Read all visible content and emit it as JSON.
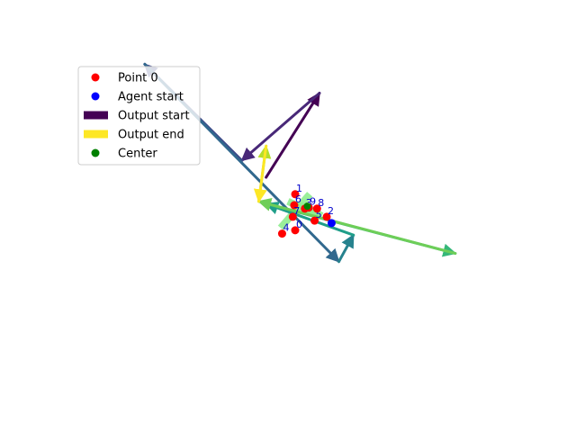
{
  "chart_data": {
    "type": "scatter",
    "title": "",
    "xlabel": "",
    "ylabel": "",
    "axes_visible": false,
    "grid": false,
    "xlim": [
      -4.6,
      4.6
    ],
    "ylim": [
      -3.6,
      3.3
    ],
    "legend": {
      "placement": "upper-left",
      "entries": [
        {
          "label": "Point 0",
          "marker": "dot",
          "color": "#ff0000"
        },
        {
          "label": "Agent start",
          "marker": "dot",
          "color": "#0000ff"
        },
        {
          "label": "Output start",
          "marker": "rect",
          "color": "#440154"
        },
        {
          "label": "Output end",
          "marker": "rect",
          "color": "#fde725"
        },
        {
          "label": "Center",
          "marker": "dot",
          "color": "#008000"
        }
      ]
    },
    "points": [
      {
        "label": "0",
        "x": 0.0,
        "y": -0.4,
        "color": "#ff0000"
      },
      {
        "label": "1",
        "x": 0.0,
        "y": 0.35,
        "color": "#ff0000"
      },
      {
        "label": "2",
        "x": 0.65,
        "y": -0.12,
        "color": "#ff0000"
      },
      {
        "label": "3",
        "x": 0.2,
        "y": 0.05,
        "color": "#ff0000"
      },
      {
        "label": "4",
        "x": -0.27,
        "y": -0.47,
        "color": "#ff0000"
      },
      {
        "label": "5",
        "x": 0.4,
        "y": -0.2,
        "color": "#ff0000"
      },
      {
        "label": "6",
        "x": -0.02,
        "y": 0.12,
        "color": "#ff0000"
      },
      {
        "label": "7",
        "x": -0.05,
        "y": -0.12,
        "color": "#ff0000"
      },
      {
        "label": "8",
        "x": 0.45,
        "y": 0.05,
        "color": "#ff0000"
      },
      {
        "label": "9",
        "x": 0.28,
        "y": 0.07,
        "color": "#ff0000"
      }
    ],
    "agent_start": {
      "x": 0.75,
      "y": -0.25,
      "color": "#0000ff"
    },
    "center": {
      "x": 0.25,
      "y": 0.1,
      "color": "#008000"
    },
    "bands": [
      {
        "from": [
          -0.3,
          -0.35
        ],
        "to": [
          0.3,
          0.35
        ],
        "color": "#90ee90"
      },
      {
        "from": [
          -0.15,
          0.2
        ],
        "to": [
          0.5,
          -0.1
        ],
        "color": "#90ee90"
      },
      {
        "from": [
          0.1,
          0.12
        ],
        "to": [
          0.55,
          -0.1
        ],
        "color": "#90ee90"
      }
    ],
    "path": {
      "start": [
        -0.6,
        0.7
      ],
      "end": [
        -0.75,
        0.2
      ],
      "colors": [
        "#440154",
        "#482878",
        "#3e4989",
        "#31688e",
        "#26828e",
        "#1f9e89",
        "#35b779",
        "#6ece58",
        "#b5de2b",
        "#fde725"
      ],
      "x": [
        -0.6,
        0.5,
        -1.1,
        -3.1,
        0.9,
        1.2,
        -0.6,
        3.3,
        -0.75,
        -0.6,
        -0.75
      ],
      "y": [
        0.7,
        2.45,
        1.05,
        3.05,
        -1.05,
        -0.5,
        0.15,
        -0.88,
        0.2,
        1.35,
        0.2
      ]
    }
  }
}
